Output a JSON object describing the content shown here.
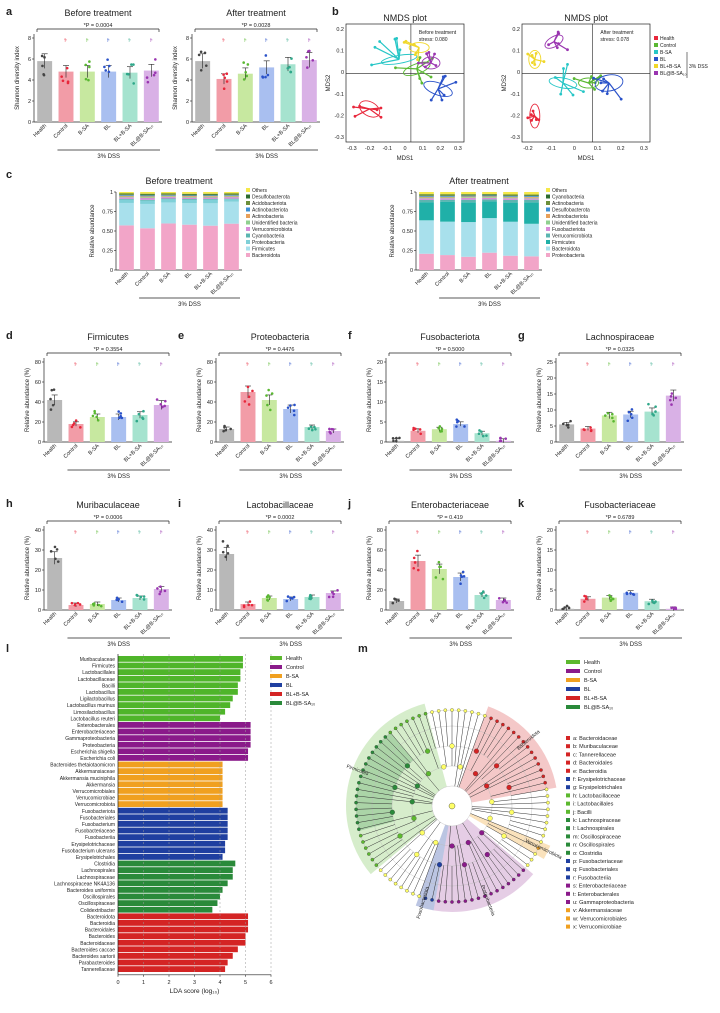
{
  "panels": {
    "a": "a",
    "b": "b",
    "c": "c",
    "d": "d",
    "e": "e",
    "f": "f",
    "g": "g",
    "h": "h",
    "i": "i",
    "j": "j",
    "k": "k",
    "l": "l",
    "m": "m"
  },
  "groups": [
    "Health",
    "Control",
    "B-SA",
    "BL",
    "BL+B-SA",
    "BL@B-SA₁₀"
  ],
  "group_colors": [
    "#b8b8b8",
    "#f29ca7",
    "#c7e8a0",
    "#a9bff0",
    "#a6e3cf",
    "#d9b1e6"
  ],
  "dot_colors": [
    "#444444",
    "#e8273b",
    "#5ab832",
    "#2a52c9",
    "#30a88a",
    "#9a35b0"
  ],
  "dss_label": "3% DSS",
  "rel_abundance_label": "Relative abundance (%)",
  "rel_abundance_axis": "Relative abundance",
  "shannon_label": "Shannon diversity index",
  "shannon": [
    {
      "title": "Before treatment",
      "p": "*P = 0.0004",
      "ylim": [
        0,
        8
      ],
      "ticks": [
        0,
        2,
        4,
        6,
        8
      ],
      "values": [
        5.8,
        4.8,
        4.8,
        4.8,
        4.7,
        4.9
      ]
    },
    {
      "title": "After treatment",
      "p": "*P = 0.0028",
      "ylim": [
        0,
        8
      ],
      "ticks": [
        0,
        2,
        4,
        6,
        8
      ],
      "values": [
        5.8,
        4.1,
        4.6,
        5.2,
        5.5,
        5.9
      ]
    }
  ],
  "nmds": {
    "title": "NMDS plot",
    "xlabel": "MDS1",
    "ylabel": "MDS2",
    "left": {
      "stress": "Before treatment\nstress: 0.080",
      "xticks": [
        "-0.3",
        "-0.2",
        "-0.1",
        "0",
        "0.1",
        "0.2",
        "0.3"
      ],
      "yticks": [
        "0.2",
        "0.1",
        "0",
        "-0.1",
        "-0.2",
        "-0.3"
      ]
    },
    "right": {
      "stress": "After treatment\nstress: 0.078",
      "xticks": [
        "-0.2",
        "-0.1",
        "0",
        "0.1",
        "0.2",
        "0.3"
      ],
      "yticks": [
        "0.2",
        "0.1",
        "0",
        "-0.1",
        "-0.2",
        "-0.3"
      ]
    },
    "legend": [
      "Health",
      "Control",
      "B-SA",
      "BL",
      "BL+B-SA",
      "BL@B-SA₁₀"
    ],
    "legend_colors": [
      "#e8273b",
      "#5ab832",
      "#26c6c6",
      "#2a52c9",
      "#f0d72a",
      "#9a35b0"
    ]
  },
  "composition": {
    "before_title": "Before treatment",
    "after_title": "After treatment",
    "before_legend": [
      "Others",
      "Desulfobacterota",
      "Acidobacteriota",
      "Actinobacteriota",
      "Actinobacteria",
      "Unidentified bacteria",
      "Verrucomicrobiota",
      "Cyanobacteria",
      "Proteobacteria",
      "Firmicutes",
      "Bacteroidota"
    ],
    "before_colors": [
      "#f5e84a",
      "#2e6b2e",
      "#6c8f3a",
      "#3b8fd6",
      "#e8a05a",
      "#8fd08f",
      "#d88cd8",
      "#5bb5b0",
      "#7fd0d8",
      "#a8e0ec",
      "#f2a5c8"
    ],
    "after_legend": [
      "Others",
      "Cyanobacteria",
      "Actinobacteria",
      "Desulfobacterota",
      "Actinobacteriota",
      "Unidentified bacteria",
      "Fusobacteriota",
      "Verrucomicrobiota",
      "Firmicutes",
      "Bacteroidota",
      "Proteobacteria"
    ],
    "after_colors": [
      "#f5e84a",
      "#2e6b2e",
      "#6c8f3a",
      "#3b8fd6",
      "#e8a05a",
      "#8fd08f",
      "#d88cd8",
      "#5bb5b0",
      "#20b0a8",
      "#a8e0ec",
      "#f2a5c8"
    ],
    "ticks": [
      "0",
      "0.25",
      "0.50",
      "0.75",
      "1"
    ]
  },
  "bar_panels": [
    {
      "title": "Firmicutes",
      "p": "*P = 0.3554",
      "ylim": [
        0,
        80
      ],
      "ticks": [
        0,
        20,
        40,
        60,
        80
      ],
      "values": [
        42,
        18,
        25,
        25,
        27,
        37
      ]
    },
    {
      "title": "Proteobacteria",
      "p": "*P = 0.4476",
      "ylim": [
        0,
        80
      ],
      "ticks": [
        0,
        20,
        40,
        60,
        80
      ],
      "values": [
        13,
        50,
        42,
        33,
        15,
        11
      ]
    },
    {
      "title": "Fusobacteriota",
      "p": "*P = 0.5000",
      "ylim": [
        0,
        20
      ],
      "ticks": [
        0,
        5,
        10,
        15,
        20
      ],
      "values": [
        0.3,
        2.8,
        3.2,
        4.5,
        2.2,
        0.3
      ]
    },
    {
      "title": "Lachnospiraceae",
      "p": "*P = 0.0325",
      "ylim": [
        0,
        25
      ],
      "ticks": [
        0,
        5,
        10,
        15,
        20,
        25
      ],
      "values": [
        5.5,
        4.2,
        8.3,
        8.6,
        9.5,
        14.5
      ]
    },
    {
      "title": "Muribaculaceae",
      "p": "*P = 0.0006",
      "ylim": [
        0,
        40
      ],
      "ticks": [
        0,
        10,
        20,
        30,
        40
      ],
      "values": [
        26,
        2.5,
        3,
        5,
        6,
        10.5
      ]
    },
    {
      "title": "Lactobacillaceae",
      "p": "*P = 0.0002",
      "ylim": [
        0,
        40
      ],
      "ticks": [
        0,
        10,
        20,
        30,
        40
      ],
      "values": [
        28,
        3,
        6,
        5.5,
        6.5,
        8.5
      ]
    },
    {
      "title": "Enterobacteriaceae",
      "p": "*P = 0.419",
      "ylim": [
        0,
        80
      ],
      "ticks": [
        0,
        20,
        40,
        60,
        80
      ],
      "values": [
        9,
        49,
        41,
        33,
        15,
        10
      ]
    },
    {
      "title": "Fusobacteriaceae",
      "p": "*P = 0.6789",
      "ylim": [
        0,
        20
      ],
      "ticks": [
        0,
        5,
        10,
        15,
        20
      ],
      "values": [
        0.3,
        2.8,
        3.1,
        4.3,
        2.2,
        0.3
      ]
    }
  ],
  "lda": {
    "xlabel": "LDA score (log₁₀)",
    "xticks": [
      "0",
      "1",
      "2",
      "3",
      "4",
      "5",
      "6"
    ],
    "legend": [
      "Health",
      "Control",
      "B-SA",
      "BL",
      "BL+B-SA",
      "BL@B-SA₁₀"
    ],
    "legend_colors": [
      "#5cb82e",
      "#8a1a8a",
      "#f0a020",
      "#1f3fa0",
      "#d42424",
      "#2a8a3a"
    ],
    "groups": [
      {
        "color": "#4fb52a",
        "taxa": [
          "Muribaculaceae",
          "Firmicutes",
          "Lactobacillales",
          "Lactobacillaceae",
          "Bacilli",
          "Lactobacillus",
          "Ligilactobacillus",
          "Lactobacillus murinus",
          "Limosilactobacillus",
          "Lactobacillus reuteri"
        ],
        "scores": [
          4.9,
          4.9,
          4.8,
          4.8,
          4.7,
          4.7,
          4.5,
          4.4,
          4.2,
          4.0
        ]
      },
      {
        "color": "#8a1a8a",
        "taxa": [
          "Enterobacterales",
          "Enterobacteriaceae",
          "Gammaproteobacteria",
          "Proteobacteria",
          "Escherichia shigella",
          "Escherichia coli"
        ],
        "scores": [
          5.2,
          5.2,
          5.2,
          5.2,
          5.1,
          5.1
        ]
      },
      {
        "color": "#f0a020",
        "taxa": [
          "Bacteroides thetaiotaomicron",
          "Akkermansiaceae",
          "Akkermansia muciniphila",
          "Akkermansia",
          "Verrucomicrobiales",
          "Verrucomicrobiae",
          "Verrucomicrobiota"
        ],
        "scores": [
          4.1,
          4.1,
          4.1,
          4.1,
          4.1,
          4.1,
          4.1
        ]
      },
      {
        "color": "#1f3fa0",
        "taxa": [
          "Fusobacteriota",
          "Fusobacteriales",
          "Fusobacterium",
          "Fusobacteriaceae",
          "Fusobacteriia",
          "Erysipelotrichaceae",
          "Fusobacterium ulcerans",
          "Erysipelotrichales"
        ],
        "scores": [
          4.3,
          4.3,
          4.3,
          4.3,
          4.3,
          4.2,
          4.2,
          4.1
        ]
      },
      {
        "color": "#2a8a3a",
        "taxa": [
          "Clostridia",
          "Lachnospirales",
          "Lachnospiraceae",
          "Lachnospiraceae NK4A136",
          "Bacteroides uniformis",
          "Oscillospirales",
          "Oscillospiraceae",
          "Colidextribacter"
        ],
        "scores": [
          4.6,
          4.5,
          4.5,
          4.3,
          4.1,
          4.0,
          3.9,
          3.7
        ]
      },
      {
        "color": "#d42424",
        "taxa": [
          "Bacteroidota",
          "Bacteroidia",
          "Bacteroidales",
          "Bacteroides",
          "Bacteroidaceae",
          "Bacteroides caccae",
          "Bacteroides sartorii",
          "Parabacteroides",
          "Tannerellaceae"
        ],
        "scores": [
          5.1,
          5.1,
          5.1,
          5.0,
          5.0,
          4.7,
          4.5,
          4.3,
          4.2
        ]
      }
    ]
  },
  "cladogram": {
    "legend": [
      "Health",
      "Control",
      "B-SA",
      "BL",
      "BL+B-SA",
      "BL@B-SA₁₀"
    ],
    "legend_colors": [
      "#5cb82e",
      "#8a1a8a",
      "#f0a020",
      "#1f3fa0",
      "#d42424",
      "#2a8a3a"
    ],
    "taxa": [
      "a: Bacteroidaceae",
      "b: Muribaculaceae",
      "c: Tannerellaceae",
      "d: Bacteroidales",
      "e: Bacteroidia",
      "f: Erysipelotrichaceae",
      "g: Erysipelotrichales",
      "h: Lactobacillaceae",
      "i: Lactobacillales",
      "j: Bacilli",
      "k: Lachnospiraceae",
      "l: Lachnospirales",
      "m: Oscillospiraceae",
      "n: Oscillospirales",
      "o: Clostridia",
      "p: Fusobacteriaceae",
      "q: Fusobacteriales",
      "r: Fusobacteriia",
      "s: Enterobacteriaceae",
      "t: Enterobacterales",
      "u: Gammaproteobacteria",
      "v: Akkermansiaceae",
      "w: Verrucomicrobiales",
      "x: Verrucomicrobiae"
    ],
    "taxa_colors": [
      "#d42424",
      "#d42424",
      "#d42424",
      "#d42424",
      "#d42424",
      "#1f3fa0",
      "#1f3fa0",
      "#5cb82e",
      "#5cb82e",
      "#5cb82e",
      "#2a8a3a",
      "#2a8a3a",
      "#2a8a3a",
      "#2a8a3a",
      "#2a8a3a",
      "#1f3fa0",
      "#1f3fa0",
      "#1f3fa0",
      "#8a1a8a",
      "#8a1a8a",
      "#8a1a8a",
      "#f0a020",
      "#f0a020",
      "#f0a020"
    ],
    "arc_labels": [
      "Bacteroidota",
      "Firmicutes",
      "Proteobacteria",
      "Fusobacteriota",
      "Verrucomicrobiota"
    ]
  }
}
